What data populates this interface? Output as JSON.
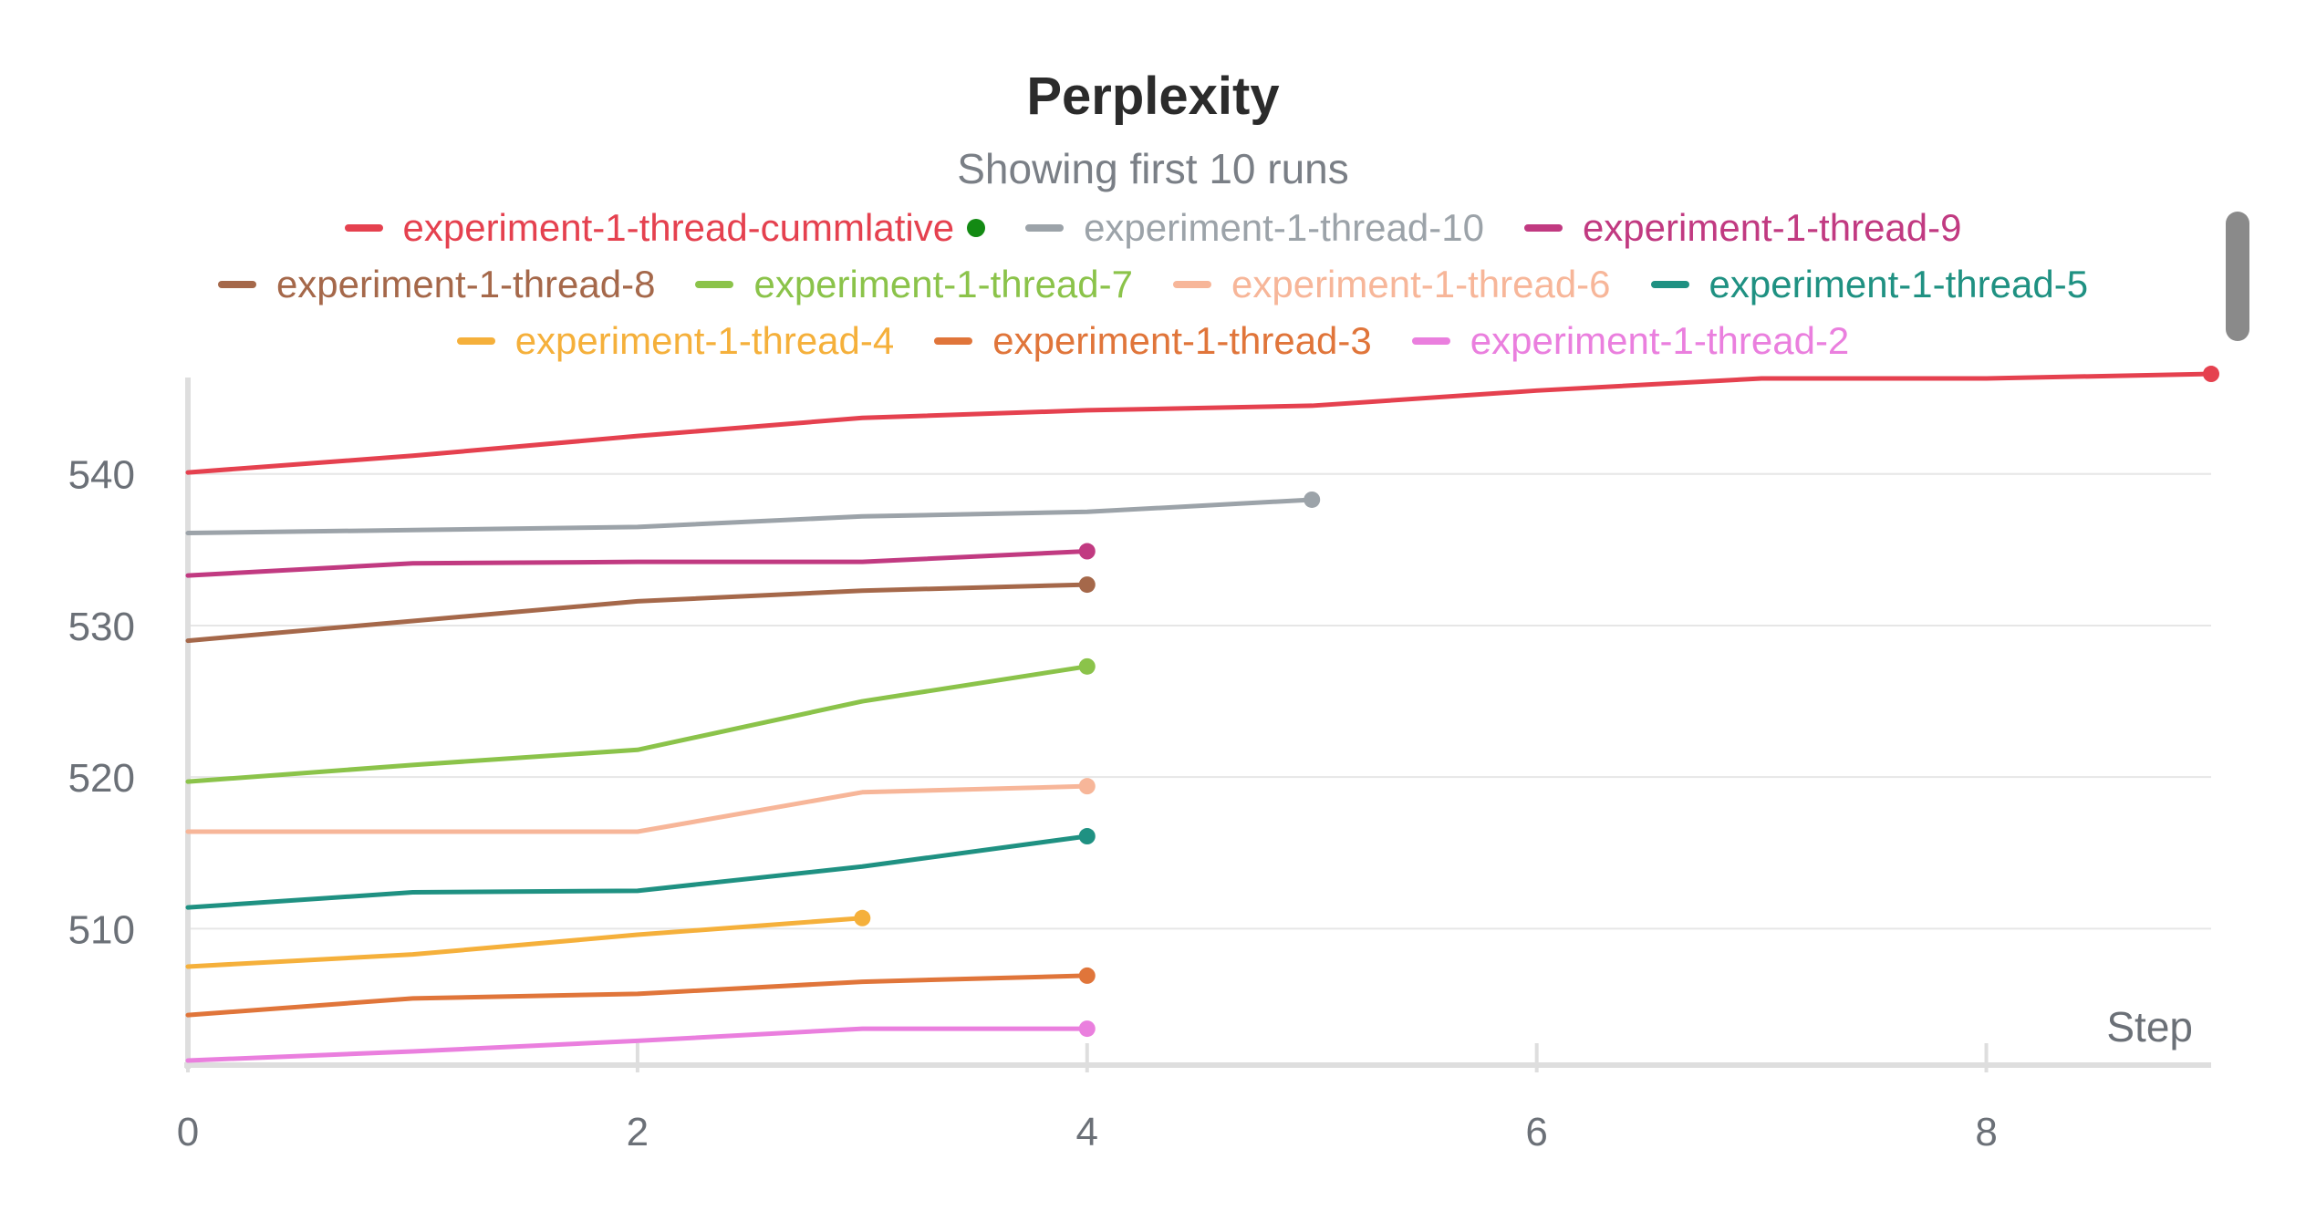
{
  "chart_data": {
    "type": "line",
    "title": "Perplexity",
    "subtitle": "Showing first 10 runs",
    "xlabel": "Step",
    "ylabel": "",
    "xlim": [
      0,
      9
    ],
    "ylim": [
      501,
      546
    ],
    "x_ticks": [
      0,
      2,
      4,
      6,
      8
    ],
    "y_ticks": [
      510,
      520,
      530,
      540
    ],
    "grid": true,
    "legend_position": "top",
    "legend_highlight_color": "#138a13",
    "series": [
      {
        "name": "experiment-1-thread-cummlative",
        "color": "#e5414f",
        "x": [
          0,
          1,
          2,
          3,
          4,
          5,
          6,
          7,
          8,
          9
        ],
        "values": [
          540.1,
          541.2,
          542.5,
          543.7,
          544.2,
          544.5,
          545.5,
          546.3,
          546.3,
          546.6
        ]
      },
      {
        "name": "experiment-1-thread-10",
        "color": "#9ca3a9",
        "x": [
          0,
          1,
          2,
          3,
          4,
          5
        ],
        "values": [
          536.1,
          536.3,
          536.5,
          537.2,
          537.5,
          538.3
        ]
      },
      {
        "name": "experiment-1-thread-9",
        "color": "#c13a81",
        "x": [
          0,
          1,
          2,
          3,
          4
        ],
        "values": [
          533.3,
          534.1,
          534.2,
          534.2,
          534.9
        ]
      },
      {
        "name": "experiment-1-thread-8",
        "color": "#a5684a",
        "x": [
          0,
          1,
          2,
          3,
          4
        ],
        "values": [
          529.0,
          530.3,
          531.6,
          532.3,
          532.7
        ]
      },
      {
        "name": "experiment-1-thread-7",
        "color": "#8bc34a",
        "x": [
          0,
          1,
          2,
          3,
          4
        ],
        "values": [
          519.7,
          520.8,
          521.8,
          525.0,
          527.3
        ]
      },
      {
        "name": "experiment-1-thread-6",
        "color": "#f7b699",
        "x": [
          0,
          1,
          2,
          3,
          4
        ],
        "values": [
          516.4,
          516.4,
          516.4,
          519.0,
          519.4
        ]
      },
      {
        "name": "experiment-1-thread-5",
        "color": "#1f9182",
        "x": [
          0,
          1,
          2,
          3,
          4
        ],
        "values": [
          511.4,
          512.4,
          512.5,
          514.1,
          516.1
        ]
      },
      {
        "name": "experiment-1-thread-4",
        "color": "#f5b03b",
        "x": [
          0,
          1,
          2,
          3
        ],
        "values": [
          507.5,
          508.3,
          509.6,
          510.7
        ]
      },
      {
        "name": "experiment-1-thread-3",
        "color": "#e0753a",
        "x": [
          0,
          1,
          2,
          3,
          4
        ],
        "values": [
          504.3,
          505.4,
          505.7,
          506.5,
          506.9
        ]
      },
      {
        "name": "experiment-1-thread-2",
        "color": "#ea7fde",
        "x": [
          0,
          1,
          2,
          3,
          4
        ],
        "values": [
          501.3,
          501.9,
          502.6,
          503.4,
          503.4
        ]
      }
    ]
  }
}
